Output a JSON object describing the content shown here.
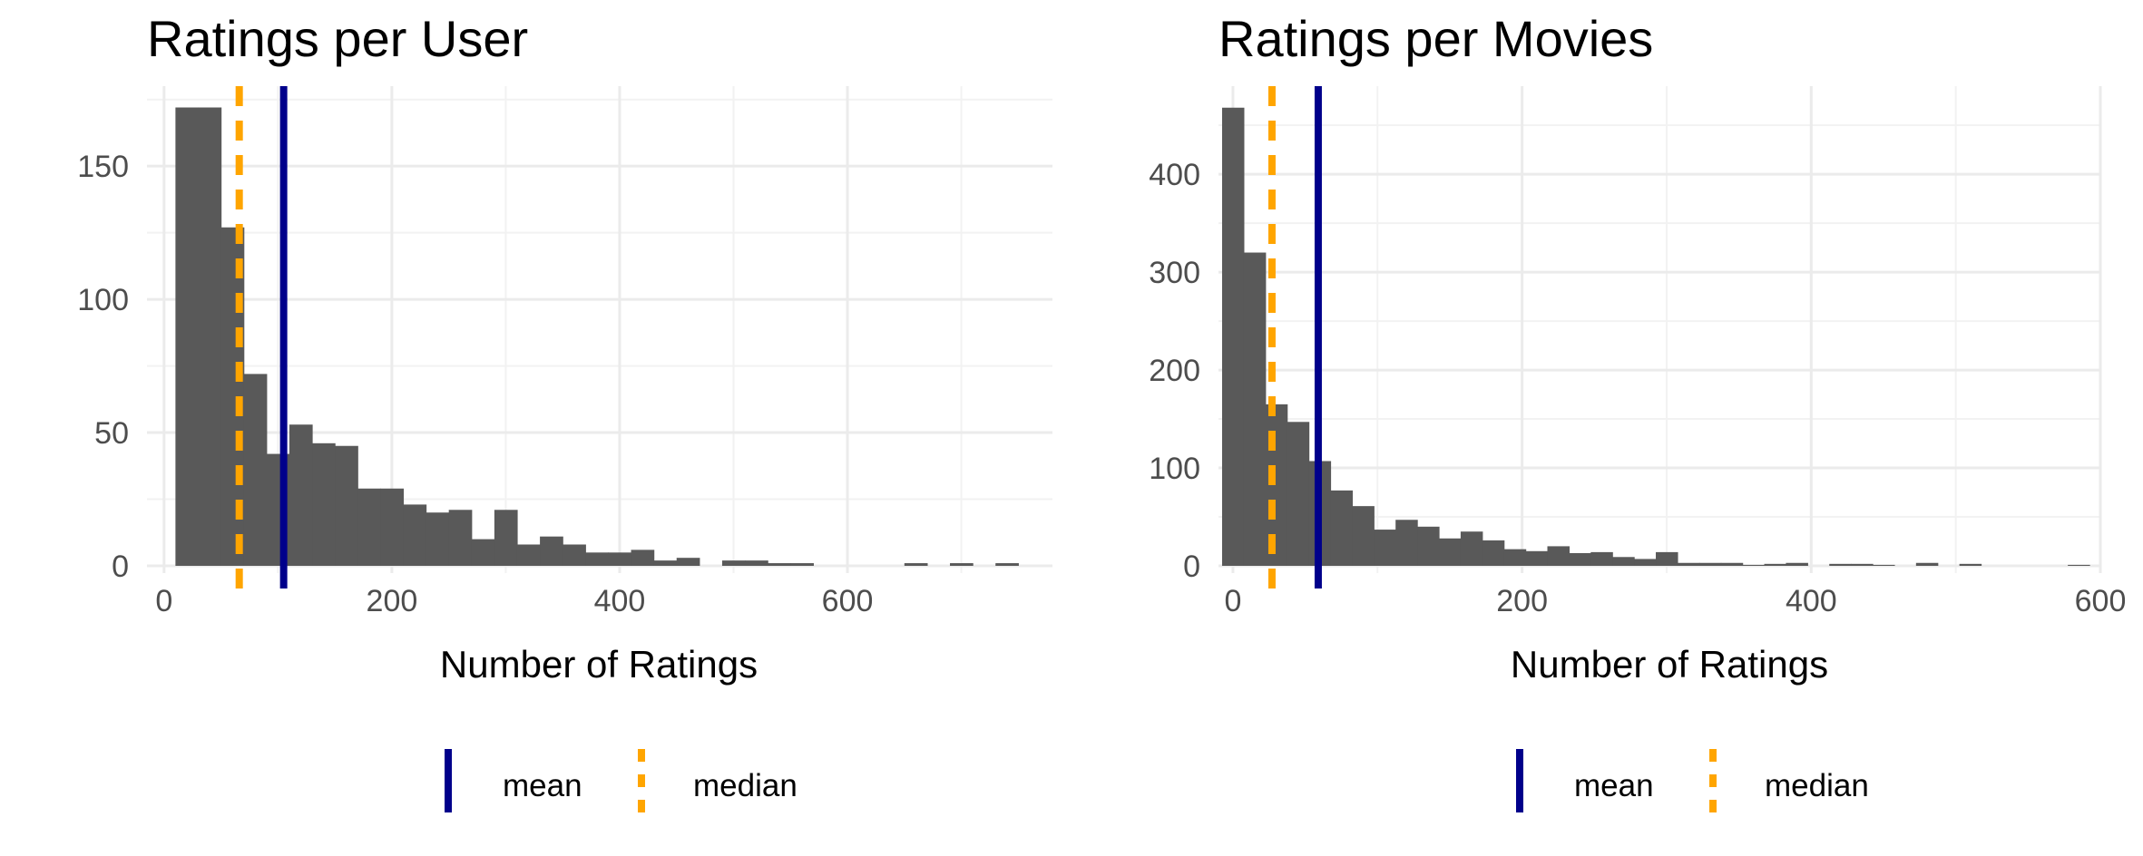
{
  "chart_data": [
    {
      "type": "bar",
      "title": "Ratings per User",
      "xlabel": "Number of Ratings",
      "ylabel": "",
      "xlim": [
        -15,
        780
      ],
      "ylim": [
        0,
        180
      ],
      "x_ticks": [
        0,
        200,
        400,
        600
      ],
      "y_ticks": [
        0,
        50,
        100,
        150
      ],
      "bin_width": 20,
      "bins_start": [
        10,
        30,
        50,
        70,
        90,
        110,
        130,
        150,
        170,
        190,
        210,
        230,
        250,
        270,
        290,
        310,
        330,
        350,
        370,
        390,
        410,
        430,
        450,
        470,
        490,
        510,
        530,
        550,
        570,
        590,
        610,
        630,
        650,
        670,
        690,
        710,
        730
      ],
      "values": [
        172,
        172,
        127,
        72,
        42,
        53,
        46,
        45,
        29,
        29,
        23,
        20,
        21,
        10,
        21,
        8,
        11,
        8,
        5,
        5,
        6,
        2,
        3,
        0,
        2,
        2,
        1,
        1,
        0,
        0,
        0,
        0,
        1,
        0,
        1,
        0,
        1
      ],
      "mean": 105,
      "median": 66,
      "legend": [
        {
          "label": "mean",
          "color": "#00008B",
          "style": "solid"
        },
        {
          "label": "median",
          "color": "#FFA500",
          "style": "dashed"
        }
      ],
      "legend_position": "bottom",
      "grid": true
    },
    {
      "type": "bar",
      "title": "Ratings per Movies",
      "xlabel": "Number of Ratings",
      "ylabel": "",
      "xlim": [
        -10,
        600
      ],
      "ylim": [
        0,
        490
      ],
      "x_ticks": [
        0,
        200,
        400,
        600
      ],
      "y_ticks": [
        0,
        100,
        200,
        300,
        400
      ],
      "bin_width": 15,
      "bins_start": [
        -7.5,
        7.5,
        22.5,
        37.5,
        52.5,
        67.5,
        82.5,
        97.5,
        112.5,
        127.5,
        142.5,
        157.5,
        172.5,
        187.5,
        202.5,
        217.5,
        232.5,
        247.5,
        262.5,
        277.5,
        292.5,
        307.5,
        322.5,
        337.5,
        352.5,
        367.5,
        382.5,
        397.5,
        412.5,
        427.5,
        442.5,
        457.5,
        472.5,
        487.5,
        502.5,
        517.5,
        532.5,
        547.5,
        562.5,
        577.5
      ],
      "values": [
        468,
        320,
        165,
        147,
        107,
        77,
        61,
        37,
        47,
        40,
        28,
        35,
        26,
        17,
        15,
        20,
        13,
        14,
        9,
        7,
        14,
        3,
        3,
        3,
        1,
        2,
        3,
        0,
        2,
        2,
        1,
        0,
        3,
        0,
        2,
        0,
        0,
        0,
        0,
        1
      ],
      "mean": 59,
      "median": 27,
      "legend": [
        {
          "label": "mean",
          "color": "#00008B",
          "style": "solid"
        },
        {
          "label": "median",
          "color": "#FFA500",
          "style": "dashed"
        }
      ],
      "legend_position": "bottom",
      "grid": true
    }
  ]
}
